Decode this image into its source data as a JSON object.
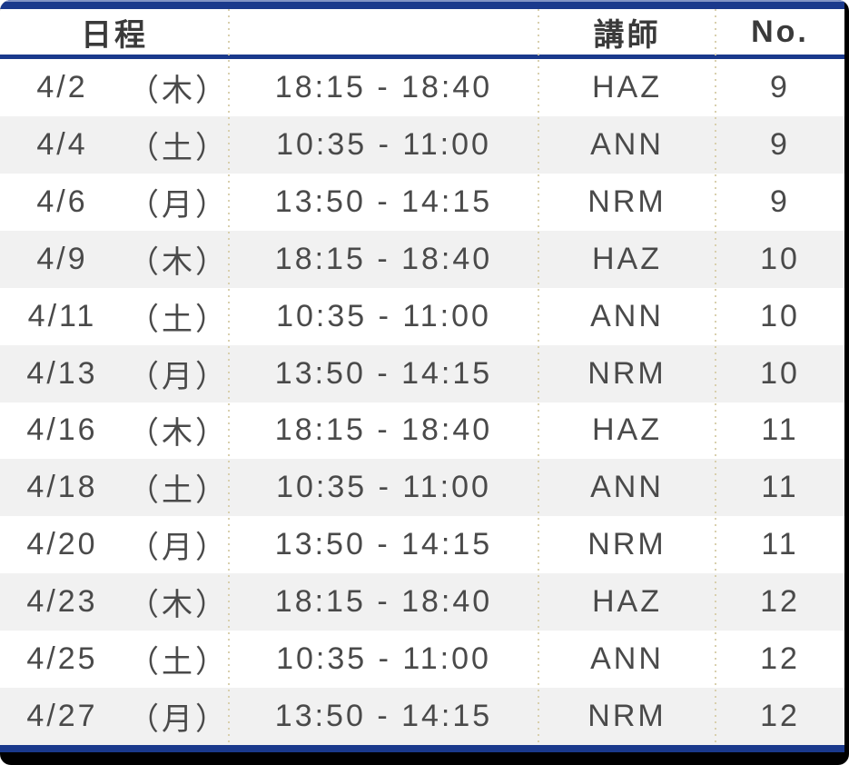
{
  "table": {
    "columns": [
      {
        "label": "日程"
      },
      {
        "label": ""
      },
      {
        "label": "講師"
      },
      {
        "label": "No."
      }
    ],
    "rows": [
      {
        "date": "4/2",
        "day": "（木）",
        "time": "18:15 - 18:40",
        "instructor": "HAZ",
        "no": "9"
      },
      {
        "date": "4/4",
        "day": "（土）",
        "time": "10:35 - 11:00",
        "instructor": "ANN",
        "no": "9"
      },
      {
        "date": "4/6",
        "day": "（月）",
        "time": "13:50 - 14:15",
        "instructor": "NRM",
        "no": "9"
      },
      {
        "date": "4/9",
        "day": "（木）",
        "time": "18:15 - 18:40",
        "instructor": "HAZ",
        "no": "10"
      },
      {
        "date": "4/11",
        "day": "（土）",
        "time": "10:35 - 11:00",
        "instructor": "ANN",
        "no": "10"
      },
      {
        "date": "4/13",
        "day": "（月）",
        "time": "13:50 - 14:15",
        "instructor": "NRM",
        "no": "10"
      },
      {
        "date": "4/16",
        "day": "（木）",
        "time": "18:15 - 18:40",
        "instructor": "HAZ",
        "no": "11"
      },
      {
        "date": "4/18",
        "day": "（土）",
        "time": "10:35 - 11:00",
        "instructor": "ANN",
        "no": "11"
      },
      {
        "date": "4/20",
        "day": "（月）",
        "time": "13:50 - 14:15",
        "instructor": "NRM",
        "no": "11"
      },
      {
        "date": "4/23",
        "day": "（木）",
        "time": "18:15 - 18:40",
        "instructor": "HAZ",
        "no": "12"
      },
      {
        "date": "4/25",
        "day": "（土）",
        "time": "10:35 - 11:00",
        "instructor": "ANN",
        "no": "12"
      },
      {
        "date": "4/27",
        "day": "（月）",
        "time": "13:50 - 14:15",
        "instructor": "NRM",
        "no": "12"
      }
    ]
  },
  "colors": {
    "accent_navy": "#1a398c",
    "accent_navy_light_edge": "#8193c5",
    "row_stripe": "#f1f1f1",
    "column_divider_dots": "#d9d0ae",
    "frame_black": "#000000",
    "header_text": "#3a3a3a",
    "body_text": "#4a4a4a"
  }
}
